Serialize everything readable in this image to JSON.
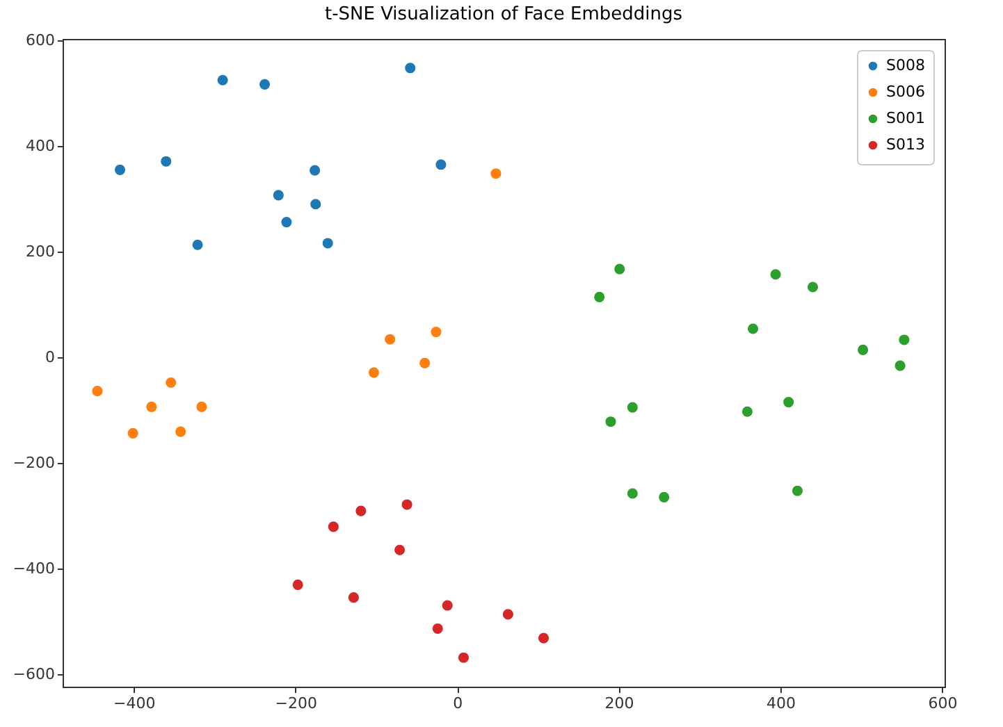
{
  "chart_data": {
    "type": "scatter",
    "title": "t-SNE Visualization of Face Embeddings",
    "marker": "circle",
    "legend": "top right",
    "grid": false,
    "xlim": [
      -488,
      603
    ],
    "ylim": [
      -624,
      603
    ],
    "xticks": [
      -400,
      -200,
      0,
      200,
      400,
      600
    ],
    "yticks": [
      -600,
      -400,
      -200,
      0,
      200,
      400,
      600
    ],
    "series": [
      {
        "name": "S008",
        "color": "#1f77b4",
        "x": [
          -417,
          -360,
          -290,
          -238,
          -58,
          -20,
          -176,
          -221,
          -175,
          -211,
          -321,
          -160
        ],
        "values": [
          355,
          371,
          525,
          517,
          548,
          365,
          354,
          307,
          290,
          256,
          213,
          216
        ]
      },
      {
        "name": "S006",
        "color": "#ff7f0e",
        "x": [
          -445,
          -378,
          -354,
          -316,
          -401,
          -342,
          -103,
          -83,
          -26,
          -40,
          48
        ],
        "values": [
          -64,
          -94,
          -48,
          -94,
          -144,
          -141,
          -29,
          34,
          48,
          -11,
          348
        ]
      },
      {
        "name": "S001",
        "color": "#2ca02c",
        "x": [
          201,
          176,
          394,
          440,
          366,
          502,
          553,
          548,
          359,
          410,
          217,
          190,
          217,
          256,
          421
        ],
        "values": [
          167,
          114,
          157,
          133,
          54,
          14,
          33,
          -16,
          -103,
          -85,
          -95,
          -122,
          -258,
          -265,
          -253
        ]
      },
      {
        "name": "S013",
        "color": "#d62728",
        "x": [
          -153,
          -119,
          -62,
          -71,
          -197,
          -128,
          -12,
          63,
          -24,
          107,
          8
        ],
        "values": [
          -321,
          -291,
          -279,
          -365,
          -431,
          -455,
          -470,
          -487,
          -514,
          -532,
          -569
        ]
      }
    ]
  }
}
